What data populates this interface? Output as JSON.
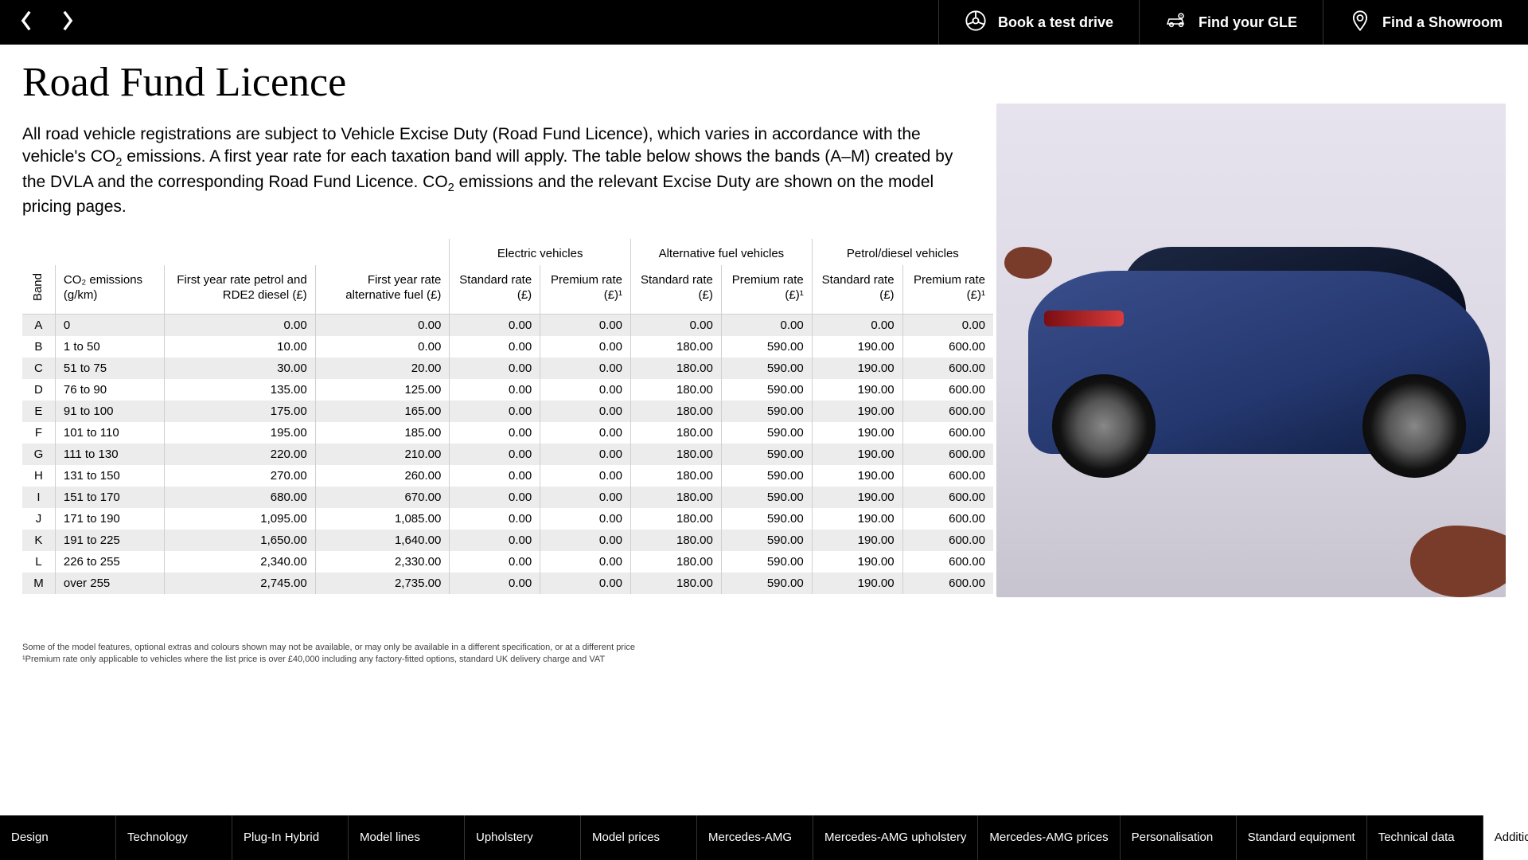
{
  "topbar": {
    "book": "Book a test drive",
    "find_model": "Find your GLE",
    "find_showroom": "Find a Showroom"
  },
  "page": {
    "title": "Road Fund Licence",
    "intro_html": "All road vehicle registrations are subject to Vehicle Excise Duty (Road Fund Licence), which varies in accordance with the vehicle's CO<sub>2</sub> emissions. A first year rate for each taxation band will apply. The table below shows the bands (A–M) created by the DVLA and the corresponding Road Fund Licence. CO<sub>2</sub> emissions and the relevant Excise Duty are shown on the model pricing pages."
  },
  "table": {
    "groups": [
      "Electric vehicles",
      "Alternative fuel vehicles",
      "Petrol/diesel vehicles"
    ],
    "band_label": "Band",
    "headers": {
      "co2": "CO₂ emissions (g/km)",
      "fyr_petrol": "First year rate petrol and RDE2 diesel (£)",
      "fyr_alt": "First year rate alternative fuel (£)",
      "std": "Standard rate (£)",
      "prem": "Premium rate (£)¹"
    },
    "rows": [
      {
        "band": "A",
        "co2": "0",
        "fyr1": "0.00",
        "fyr2": "0.00",
        "e_s": "0.00",
        "e_p": "0.00",
        "a_s": "0.00",
        "a_p": "0.00",
        "p_s": "0.00",
        "p_p": "0.00"
      },
      {
        "band": "B",
        "co2": "1 to 50",
        "fyr1": "10.00",
        "fyr2": "0.00",
        "e_s": "0.00",
        "e_p": "0.00",
        "a_s": "180.00",
        "a_p": "590.00",
        "p_s": "190.00",
        "p_p": "600.00"
      },
      {
        "band": "C",
        "co2": "51 to 75",
        "fyr1": "30.00",
        "fyr2": "20.00",
        "e_s": "0.00",
        "e_p": "0.00",
        "a_s": "180.00",
        "a_p": "590.00",
        "p_s": "190.00",
        "p_p": "600.00"
      },
      {
        "band": "D",
        "co2": "76 to 90",
        "fyr1": "135.00",
        "fyr2": "125.00",
        "e_s": "0.00",
        "e_p": "0.00",
        "a_s": "180.00",
        "a_p": "590.00",
        "p_s": "190.00",
        "p_p": "600.00"
      },
      {
        "band": "E",
        "co2": "91 to 100",
        "fyr1": "175.00",
        "fyr2": "165.00",
        "e_s": "0.00",
        "e_p": "0.00",
        "a_s": "180.00",
        "a_p": "590.00",
        "p_s": "190.00",
        "p_p": "600.00"
      },
      {
        "band": "F",
        "co2": "101 to 110",
        "fyr1": "195.00",
        "fyr2": "185.00",
        "e_s": "0.00",
        "e_p": "0.00",
        "a_s": "180.00",
        "a_p": "590.00",
        "p_s": "190.00",
        "p_p": "600.00"
      },
      {
        "band": "G",
        "co2": "111 to 130",
        "fyr1": "220.00",
        "fyr2": "210.00",
        "e_s": "0.00",
        "e_p": "0.00",
        "a_s": "180.00",
        "a_p": "590.00",
        "p_s": "190.00",
        "p_p": "600.00"
      },
      {
        "band": "H",
        "co2": "131 to 150",
        "fyr1": "270.00",
        "fyr2": "260.00",
        "e_s": "0.00",
        "e_p": "0.00",
        "a_s": "180.00",
        "a_p": "590.00",
        "p_s": "190.00",
        "p_p": "600.00"
      },
      {
        "band": "I",
        "co2": "151 to 170",
        "fyr1": "680.00",
        "fyr2": "670.00",
        "e_s": "0.00",
        "e_p": "0.00",
        "a_s": "180.00",
        "a_p": "590.00",
        "p_s": "190.00",
        "p_p": "600.00"
      },
      {
        "band": "J",
        "co2": "171 to 190",
        "fyr1": "1,095.00",
        "fyr2": "1,085.00",
        "e_s": "0.00",
        "e_p": "0.00",
        "a_s": "180.00",
        "a_p": "590.00",
        "p_s": "190.00",
        "p_p": "600.00"
      },
      {
        "band": "K",
        "co2": "191 to 225",
        "fyr1": "1,650.00",
        "fyr2": "1,640.00",
        "e_s": "0.00",
        "e_p": "0.00",
        "a_s": "180.00",
        "a_p": "590.00",
        "p_s": "190.00",
        "p_p": "600.00"
      },
      {
        "band": "L",
        "co2": "226 to 255",
        "fyr1": "2,340.00",
        "fyr2": "2,330.00",
        "e_s": "0.00",
        "e_p": "0.00",
        "a_s": "180.00",
        "a_p": "590.00",
        "p_s": "190.00",
        "p_p": "600.00"
      },
      {
        "band": "M",
        "co2": "over 255",
        "fyr1": "2,745.00",
        "fyr2": "2,735.00",
        "e_s": "0.00",
        "e_p": "0.00",
        "a_s": "180.00",
        "a_p": "590.00",
        "p_s": "190.00",
        "p_p": "600.00"
      }
    ]
  },
  "footnotes": {
    "line1": "Some of the model features, optional extras and colours shown may not be available, or may only be available in a different specification, or at a different price",
    "line2": "¹Premium rate only applicable to vehicles where the list price is over £40,000 including any factory-fitted options, standard UK delivery charge and VAT"
  },
  "tabs": [
    {
      "label": "Design",
      "active": false
    },
    {
      "label": "Technology",
      "active": false
    },
    {
      "label": "Plug-In Hybrid",
      "active": false
    },
    {
      "label": "Model lines",
      "active": false
    },
    {
      "label": "Upholstery",
      "active": false
    },
    {
      "label": "Model prices",
      "active": false
    },
    {
      "label": "Mercedes-AMG",
      "active": false
    },
    {
      "label": "Mercedes-AMG upholstery",
      "active": false
    },
    {
      "label": "Mercedes-AMG prices",
      "active": false
    },
    {
      "label": "Personalisation",
      "active": false
    },
    {
      "label": "Standard equipment",
      "active": false
    },
    {
      "label": "Technical data",
      "active": false
    },
    {
      "label": "Additional information",
      "active": true
    }
  ],
  "colors": {
    "topbar_bg": "#000000",
    "row_alt": "#ececec",
    "border": "#cfcfcf"
  }
}
